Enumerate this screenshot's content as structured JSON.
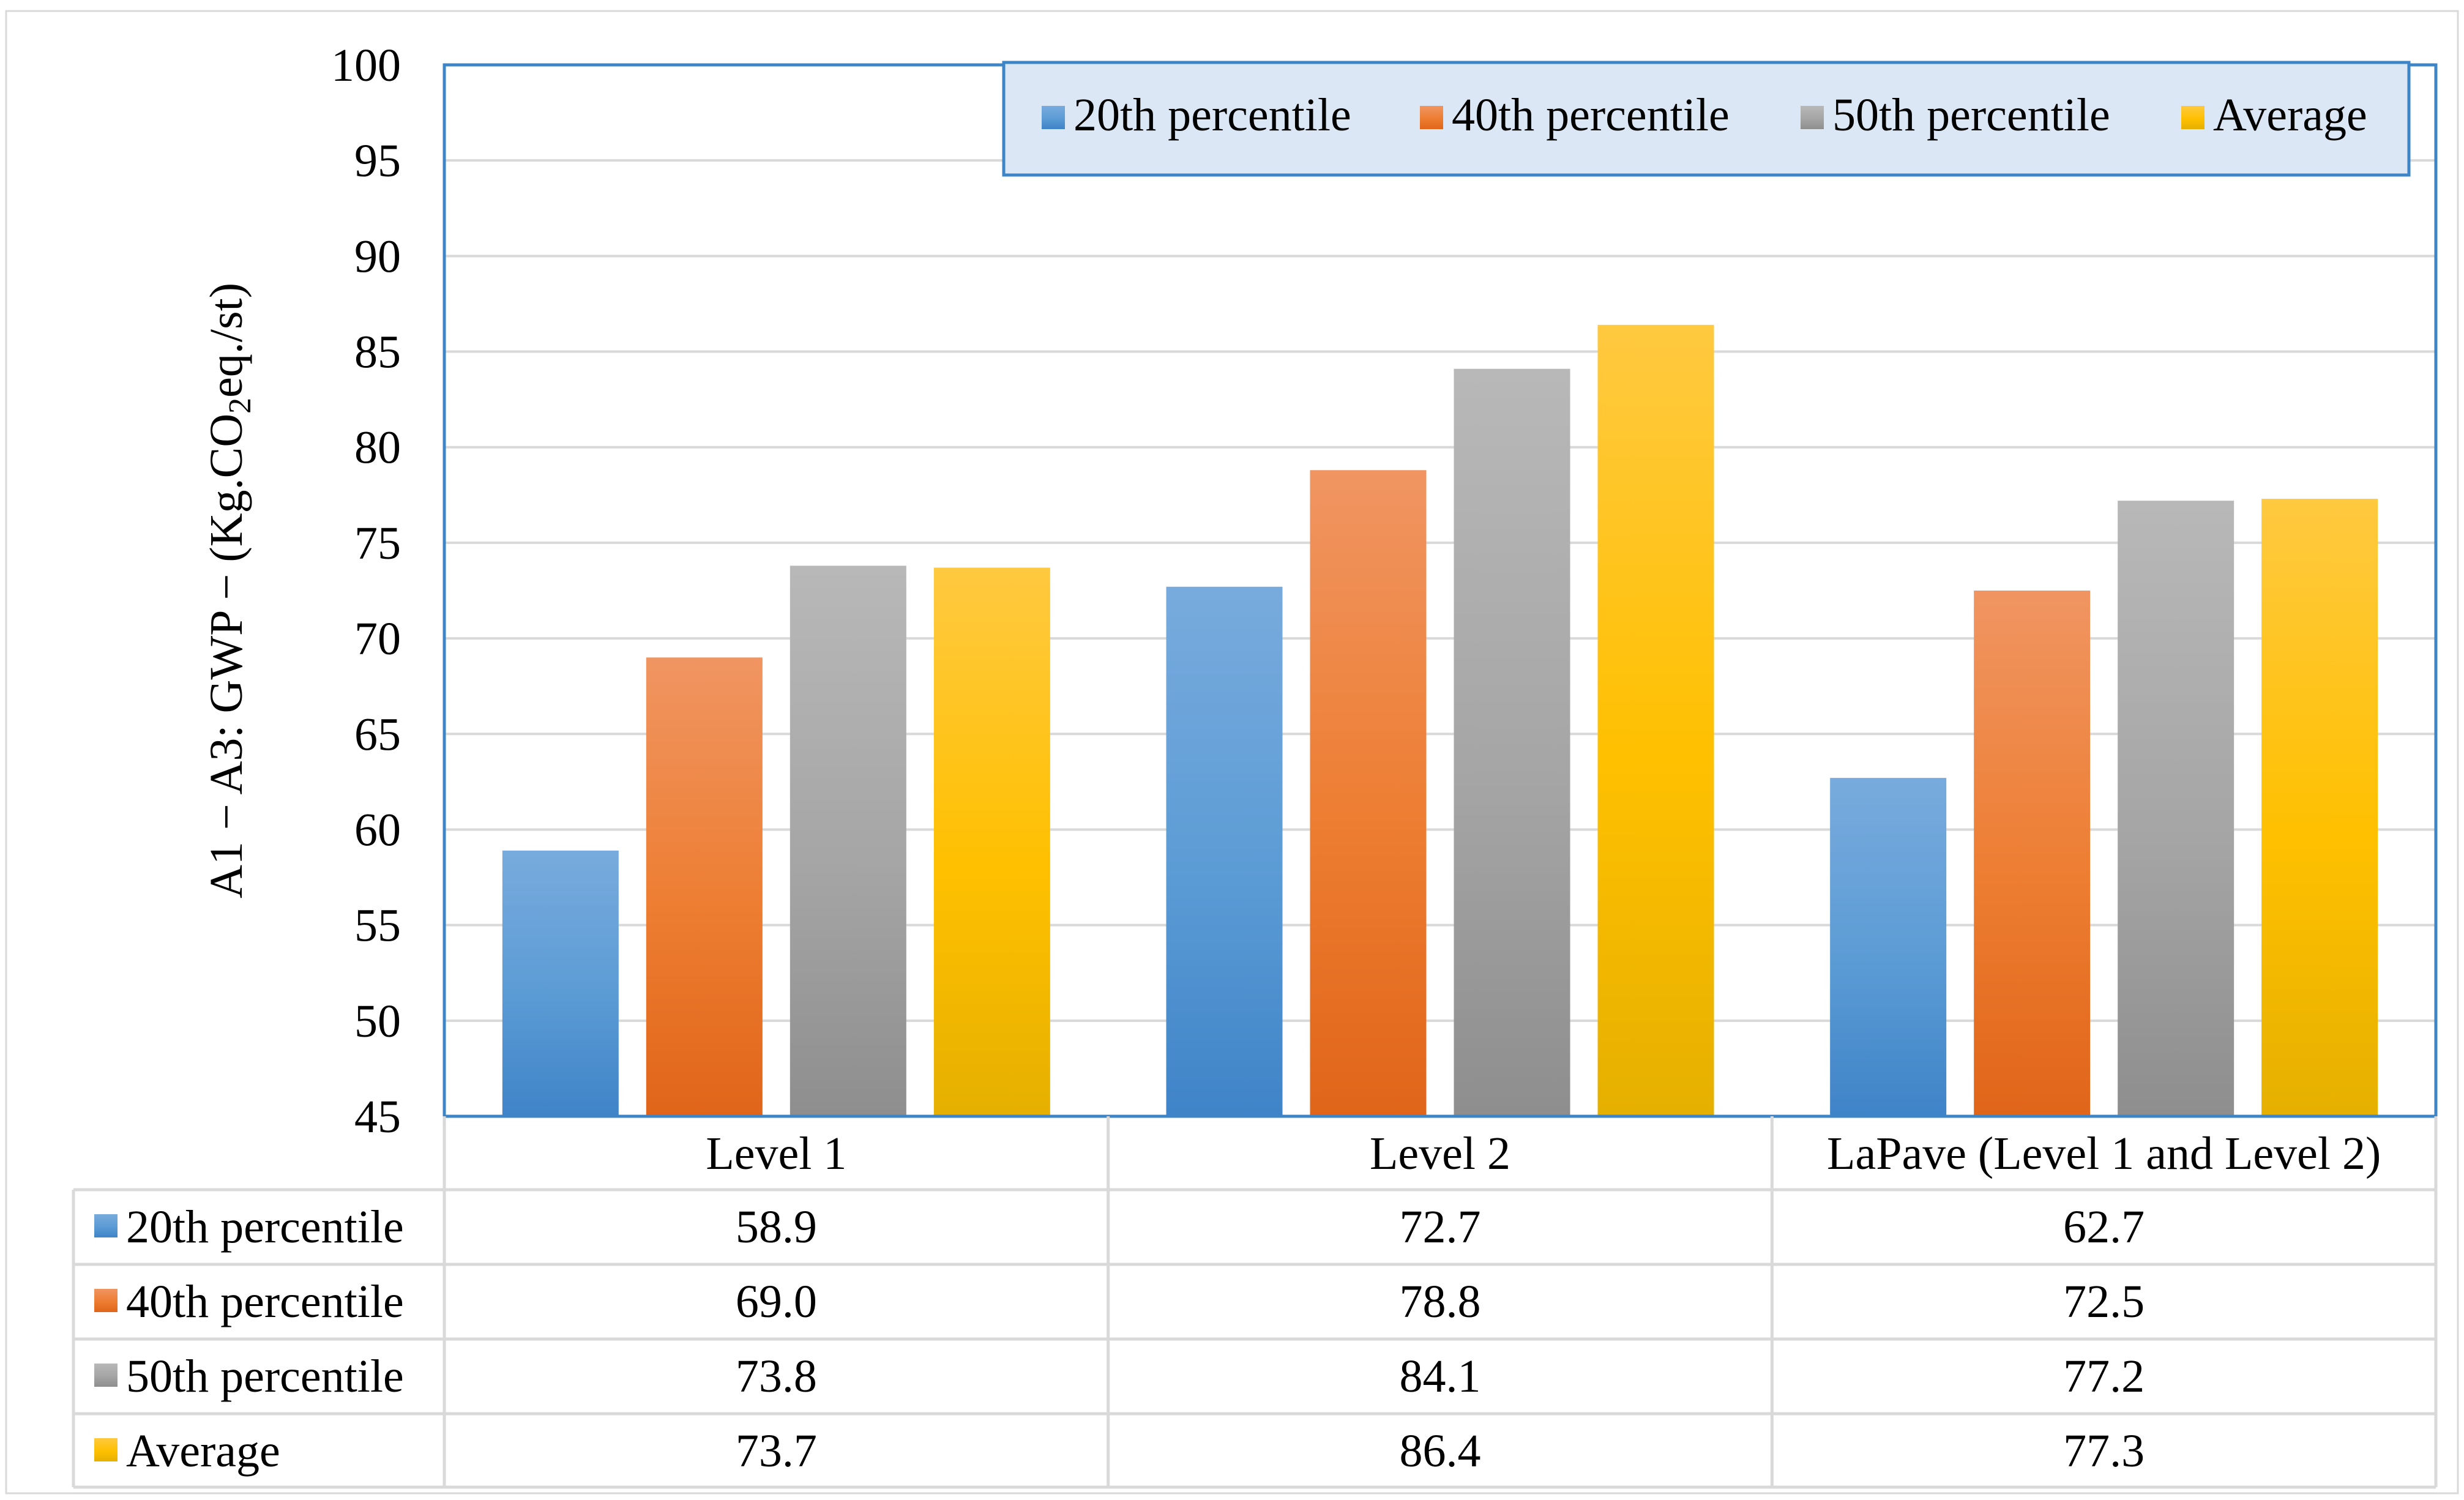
{
  "chart_data": {
    "type": "bar",
    "title": "",
    "xlabel": "",
    "ylabel_parts": [
      "A1 − A3: GWP − (Kg.CO",
      "2",
      "eq./st)"
    ],
    "ylim": [
      45,
      100
    ],
    "ytick_step": 5,
    "yticks": [
      "45",
      "50",
      "55",
      "60",
      "65",
      "70",
      "75",
      "80",
      "85",
      "90",
      "95",
      "100"
    ],
    "grid": true,
    "legend_position": "top-right",
    "categories": [
      "Level 1",
      "Level 2",
      "LaPave (Level 1 and Level 2)"
    ],
    "series": [
      {
        "name": "20th percentile",
        "values": [
          58.9,
          72.7,
          62.7
        ],
        "labels": [
          "58.9",
          "72.7",
          "62.7"
        ],
        "color": "#5B9BD5",
        "color_top": "#78ABDD",
        "color_bottom": "#3F84C8"
      },
      {
        "name": "40th percentile",
        "values": [
          69.0,
          78.8,
          72.5
        ],
        "labels": [
          "69.0",
          "78.8",
          "72.5"
        ],
        "color": "#ED7D31",
        "color_top": "#F09562",
        "color_bottom": "#E0651A"
      },
      {
        "name": "50th percentile",
        "values": [
          73.8,
          84.1,
          77.2
        ],
        "labels": [
          "73.8",
          "84.1",
          "77.2"
        ],
        "color": "#A5A5A5",
        "color_top": "#B8B8B8",
        "color_bottom": "#8E8E8E"
      },
      {
        "name": "Average",
        "values": [
          73.7,
          86.4,
          77.3
        ],
        "labels": [
          "73.7",
          "86.4",
          "77.3"
        ],
        "color": "#FFC000",
        "color_top": "#FFC940",
        "color_bottom": "#E6B000"
      }
    ]
  },
  "colors": {
    "frame": "#3D85C6",
    "gridline": "#D9D9D9",
    "legend_fill": "#DCE7F5",
    "legend_border": "#3D85C6",
    "table_border": "#D9D9D9",
    "text": "#000000"
  }
}
